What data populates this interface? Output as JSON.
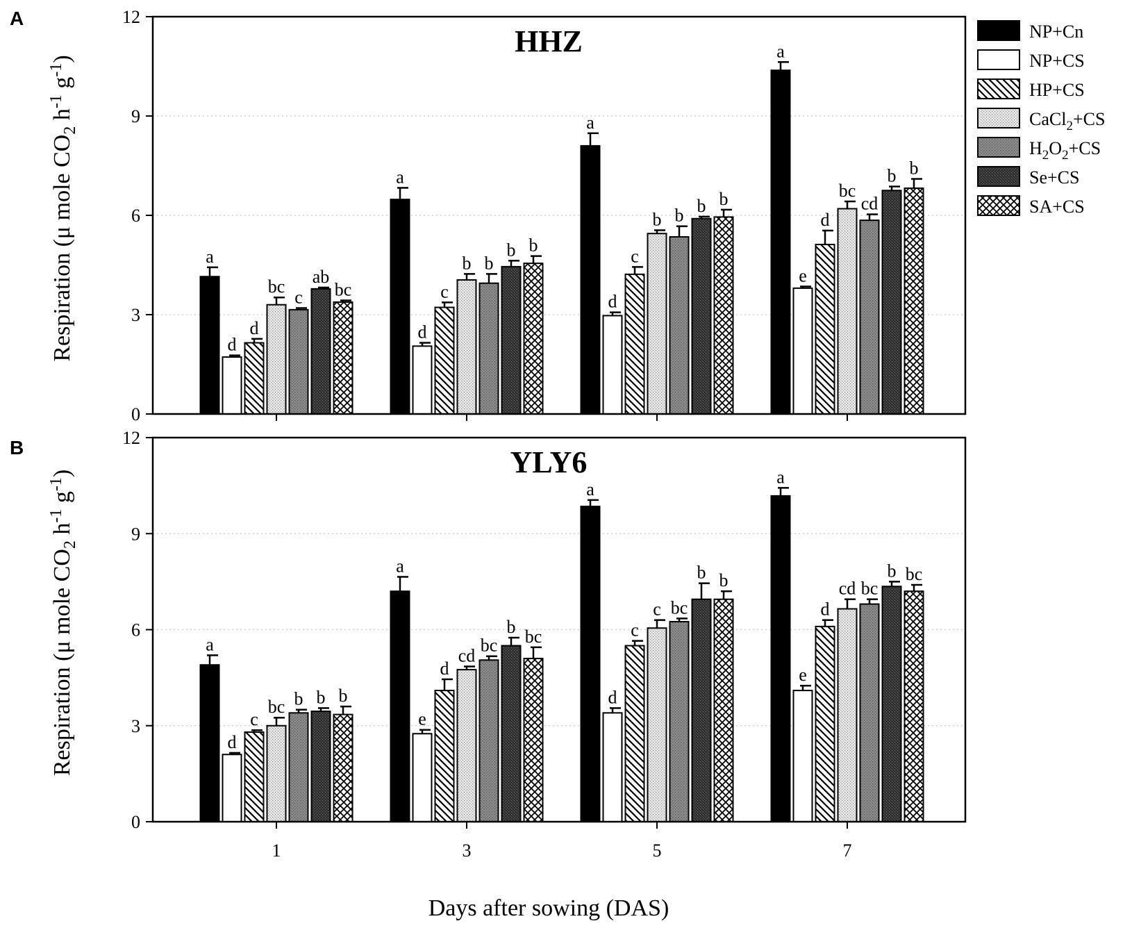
{
  "chart_data": [
    {
      "type": "bar",
      "panel_label": "A",
      "title": "HHZ",
      "ylabel_parts": {
        "main": "Respiration (μ mole CO",
        "sub": "2",
        "mid1": " h",
        "sup1": "-1",
        "mid2": " g",
        "sup2": "-1",
        "end": ")"
      },
      "ylim": [
        0,
        12
      ],
      "yticks": [
        "0",
        "3",
        "6",
        "9",
        "12"
      ],
      "grid": true,
      "categories": [
        "1",
        "3",
        "5",
        "7"
      ],
      "series": [
        {
          "name": "NP+Cn",
          "values": [
            4.15,
            6.48,
            8.1,
            10.38
          ],
          "errors": [
            0.28,
            0.35,
            0.38,
            0.25
          ],
          "letters": [
            "a",
            "a",
            "a",
            "a"
          ]
        },
        {
          "name": "NP+CS",
          "values": [
            1.72,
            2.05,
            2.97,
            3.8
          ],
          "errors": [
            0.05,
            0.1,
            0.1,
            0.05
          ],
          "letters": [
            "d",
            "d",
            "d",
            "e"
          ]
        },
        {
          "name": "HP+CS",
          "values": [
            2.15,
            3.22,
            4.22,
            5.12
          ],
          "errors": [
            0.12,
            0.15,
            0.22,
            0.42
          ],
          "letters": [
            "d",
            "c",
            "c",
            "d"
          ]
        },
        {
          "name": "CaCl2+CS",
          "values": [
            3.3,
            4.05,
            5.45,
            6.2
          ],
          "errors": [
            0.22,
            0.18,
            0.1,
            0.22
          ],
          "letters": [
            "bc",
            "b",
            "b",
            "bc"
          ]
        },
        {
          "name": "H2O2+CS",
          "values": [
            3.15,
            3.95,
            5.35,
            5.85
          ],
          "errors": [
            0.05,
            0.28,
            0.32,
            0.18
          ],
          "letters": [
            "c",
            "b",
            "b",
            "cd"
          ]
        },
        {
          "name": "Se+CS",
          "values": [
            3.78,
            4.45,
            5.9,
            6.75
          ],
          "errors": [
            0.04,
            0.18,
            0.06,
            0.12
          ],
          "letters": [
            "ab",
            "b",
            "b",
            "b"
          ]
        },
        {
          "name": "SA+CS",
          "values": [
            3.38,
            4.55,
            5.95,
            6.82
          ],
          "errors": [
            0.05,
            0.22,
            0.22,
            0.28
          ],
          "letters": [
            "bc",
            "b",
            "b",
            "b"
          ]
        }
      ]
    },
    {
      "type": "bar",
      "panel_label": "B",
      "title": "YLY6",
      "ylabel_parts": {
        "main": "Respiration (μ mole CO",
        "sub": "2",
        "mid1": " h",
        "sup1": "-1",
        "mid2": " g",
        "sup2": "-1",
        "end": ")"
      },
      "ylim": [
        0,
        12
      ],
      "yticks": [
        "0",
        "3",
        "6",
        "9",
        "12"
      ],
      "grid": true,
      "categories": [
        "1",
        "3",
        "5",
        "7"
      ],
      "xlabel": "Days after sowing (DAS)",
      "series": [
        {
          "name": "NP+Cn",
          "values": [
            4.9,
            7.2,
            9.85,
            10.18
          ],
          "errors": [
            0.3,
            0.45,
            0.2,
            0.25
          ],
          "letters": [
            "a",
            "a",
            "a",
            "a"
          ]
        },
        {
          "name": "NP+CS",
          "values": [
            2.1,
            2.75,
            3.4,
            4.1
          ],
          "errors": [
            0.05,
            0.12,
            0.15,
            0.15
          ],
          "letters": [
            "d",
            "e",
            "d",
            "e"
          ]
        },
        {
          "name": "HP+CS",
          "values": [
            2.8,
            4.1,
            5.5,
            6.1
          ],
          "errors": [
            0.06,
            0.35,
            0.15,
            0.2
          ],
          "letters": [
            "c",
            "d",
            "c",
            "d"
          ]
        },
        {
          "name": "CaCl2+CS",
          "values": [
            3.0,
            4.75,
            6.05,
            6.65
          ],
          "errors": [
            0.25,
            0.1,
            0.25,
            0.3
          ],
          "letters": [
            "bc",
            "cd",
            "c",
            "cd"
          ]
        },
        {
          "name": "H2O2+CS",
          "values": [
            3.4,
            5.05,
            6.25,
            6.8
          ],
          "errors": [
            0.1,
            0.12,
            0.1,
            0.15
          ],
          "letters": [
            "b",
            "bc",
            "bc",
            "bc"
          ]
        },
        {
          "name": "Se+CS",
          "values": [
            3.45,
            5.5,
            6.95,
            7.35
          ],
          "errors": [
            0.1,
            0.25,
            0.5,
            0.15
          ],
          "letters": [
            "b",
            "b",
            "b",
            "b"
          ]
        },
        {
          "name": "SA+CS",
          "values": [
            3.35,
            5.1,
            6.95,
            7.2
          ],
          "errors": [
            0.25,
            0.35,
            0.25,
            0.2
          ],
          "letters": [
            "b",
            "bc",
            "b",
            "bc"
          ]
        }
      ]
    }
  ],
  "legend": {
    "position": "top-right",
    "items": [
      {
        "key": "NP+Cn",
        "pattern": "solid-black",
        "label_main": "NP+Cn",
        "label_parts": []
      },
      {
        "key": "NP+CS",
        "pattern": "white",
        "label_main": "NP+CS",
        "label_parts": []
      },
      {
        "key": "HP+CS",
        "pattern": "diagonal-hatch",
        "label_main": "HP+CS",
        "label_parts": []
      },
      {
        "key": "CaCl2+CS",
        "pattern": "light-dots",
        "label_main": "",
        "label_parts": [
          {
            "t": "CaCl",
            "s": "n"
          },
          {
            "t": "2",
            "s": "sub"
          },
          {
            "t": "+CS",
            "s": "n"
          }
        ]
      },
      {
        "key": "H2O2+CS",
        "pattern": "gray-dots",
        "label_main": "",
        "label_parts": [
          {
            "t": "H",
            "s": "n"
          },
          {
            "t": "2",
            "s": "sub"
          },
          {
            "t": "O",
            "s": "n"
          },
          {
            "t": "2",
            "s": "sub"
          },
          {
            "t": "+CS",
            "s": "n"
          }
        ]
      },
      {
        "key": "Se+CS",
        "pattern": "dark-dots",
        "label_main": "Se+CS",
        "label_parts": []
      },
      {
        "key": "SA+CS",
        "pattern": "cross-hatch",
        "label_main": "SA+CS",
        "label_parts": []
      }
    ]
  }
}
